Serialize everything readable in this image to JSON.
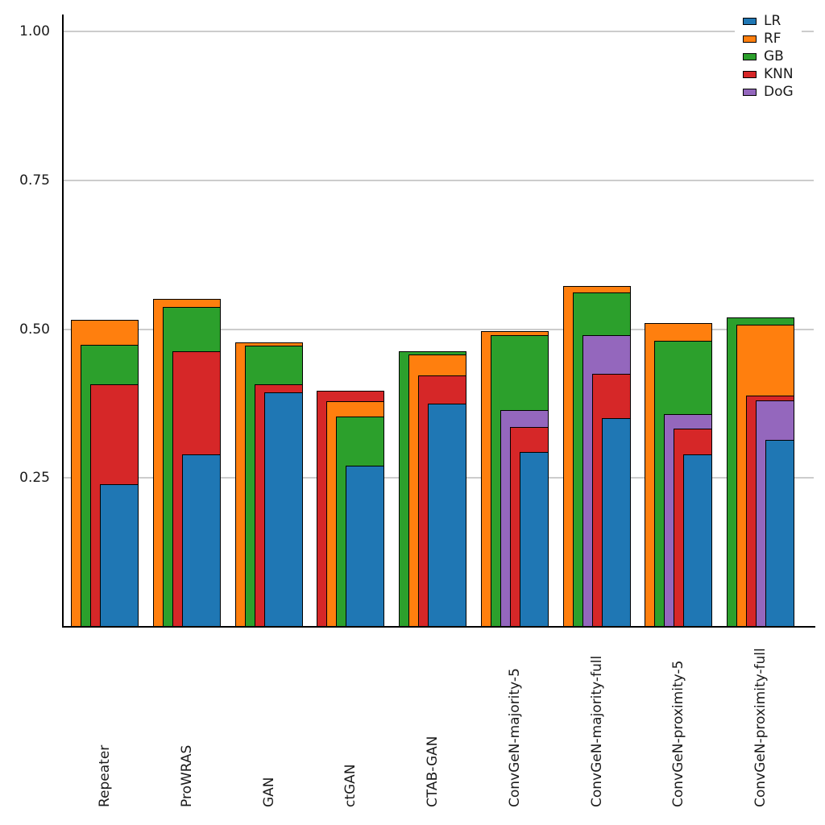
{
  "chart_data": {
    "type": "bar",
    "variant": "overlapping-nested-bars-sorted-descending",
    "title": "",
    "xlabel": "",
    "ylabel": "",
    "categories": [
      "Repeater",
      "ProWRAS",
      "GAN",
      "ctGAN",
      "CTAB-GAN",
      "ConvGeN-majority-5",
      "ConvGeN-majority-full",
      "ConvGeN-proximity-5",
      "ConvGeN-proximity-full"
    ],
    "series": [
      {
        "name": "LR",
        "color": "#1f77b4",
        "values": [
          0.24,
          0.29,
          0.394,
          0.271,
          0.375,
          0.294,
          0.35,
          0.29,
          0.314
        ]
      },
      {
        "name": "RF",
        "color": "#ff7f0e",
        "values": [
          0.516,
          0.551,
          0.478,
          0.379,
          0.457,
          0.497,
          0.572,
          0.51,
          0.507
        ]
      },
      {
        "name": "GB",
        "color": "#2ca02c",
        "values": [
          0.474,
          0.537,
          0.472,
          0.353,
          0.463,
          0.49,
          0.562,
          0.48,
          0.52
        ]
      },
      {
        "name": "KNN",
        "color": "#d62728",
        "values": [
          0.407,
          0.463,
          0.407,
          0.397,
          0.422,
          0.336,
          0.425,
          0.333,
          0.388
        ]
      },
      {
        "name": "DoG",
        "color": "#9467bd",
        "values": [
          null,
          null,
          null,
          null,
          null,
          0.364,
          0.49,
          0.357,
          0.38
        ]
      }
    ],
    "ytick_labels": [
      "0.25",
      "0.50",
      "0.75",
      "1.00"
    ],
    "ytick_values": [
      0.25,
      0.5,
      0.75,
      1.0
    ],
    "ylim": [
      0,
      1.028
    ],
    "grid": "horizontal",
    "gridline_color": "#cccccc",
    "bar_edge_color": "#000000",
    "axis_color": "#000000",
    "legend": {
      "position": "top-right",
      "entries": [
        "LR",
        "RF",
        "GB",
        "KNN",
        "DoG"
      ]
    }
  }
}
